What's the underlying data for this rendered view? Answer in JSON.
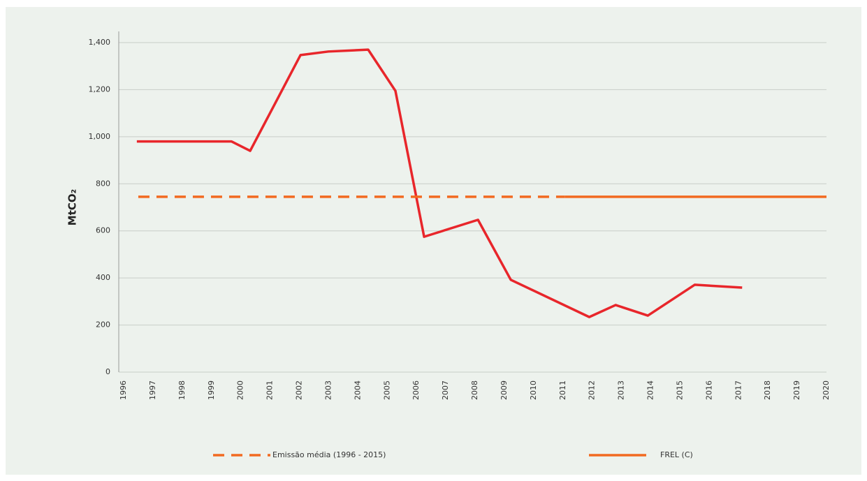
{
  "chart_data": {
    "type": "line",
    "y_label": "MtCO₂",
    "xlim": [
      1996,
      2020
    ],
    "xticks": [
      1996,
      1997,
      1998,
      1999,
      2000,
      2001,
      2002,
      2003,
      2004,
      2005,
      2006,
      2007,
      2008,
      2009,
      2010,
      2011,
      2012,
      2013,
      2014,
      2015,
      2016,
      2017,
      2018,
      2019,
      2020
    ],
    "ylim": [
      0,
      1400
    ],
    "yticks": [
      0,
      200,
      400,
      600,
      800,
      {
        "value": 1000,
        "label": "1,000"
      },
      {
        "value": 1200,
        "label": "1,200"
      },
      {
        "value": 1400,
        "label": "1,400"
      }
    ],
    "grid": true,
    "series": [
      {
        "color": "#e8262b",
        "dash": false,
        "x": [
          1996.45,
          1999.68,
          2000.32,
          2002.04,
          2002.99,
          2004.35,
          2005.28,
          2006.26,
          2008.1,
          2009.22,
          2011.9,
          2012.8,
          2013.9,
          2015.5,
          2017.12
        ],
        "values": [
          980,
          980,
          940,
          1347,
          1362,
          1370,
          1195,
          575,
          647,
          392,
          234,
          285,
          240,
          371,
          359
        ]
      },
      {
        "name": "Emissão média  (1996 - 2015)",
        "color": "#f26a21",
        "dash": true,
        "x": [
          1996.5,
          2011.06
        ],
        "values": [
          745,
          745
        ]
      },
      {
        "name": "FREL (C)",
        "color": "#f26a21",
        "dash": false,
        "x": [
          2011.06,
          2020
        ],
        "values": [
          745,
          745
        ]
      }
    ]
  }
}
